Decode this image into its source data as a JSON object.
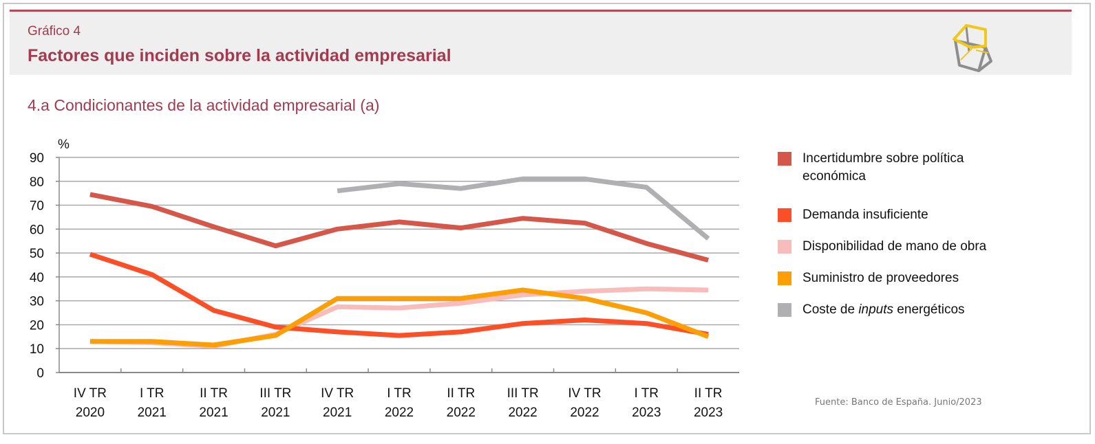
{
  "header": {
    "kicker": "Gráfico 4",
    "title": "Factores que inciden sobre la actividad empresarial",
    "logo_icon": "cube-logo-icon"
  },
  "subtitle": "4.a  Condicionantes de la actividad empresarial (a)",
  "source": "Fuente: Banco de España. Junio/2023",
  "chart_data": {
    "type": "line",
    "title": "4.a  Condicionantes de la actividad empresarial (a)",
    "ylabel": "%",
    "xlabel": "",
    "ylim": [
      0,
      90
    ],
    "yticks": [
      "0",
      "10",
      "20",
      "30",
      "40",
      "50",
      "60",
      "70",
      "80",
      "90"
    ],
    "grid": true,
    "legend_position": "right",
    "categories": [
      [
        "IV TR",
        "2020"
      ],
      [
        "I TR",
        "2021"
      ],
      [
        "II TR",
        "2021"
      ],
      [
        "III TR",
        "2021"
      ],
      [
        "IV TR",
        "2021"
      ],
      [
        "I TR",
        "2022"
      ],
      [
        "II TR",
        "2022"
      ],
      [
        "III TR",
        "2022"
      ],
      [
        "IV TR",
        "2022"
      ],
      [
        "I TR",
        "2023"
      ],
      [
        "II TR",
        "2023"
      ]
    ],
    "series": [
      {
        "name": "Incertidumbre sobre política económica",
        "color": "#d4574a",
        "values": [
          74.5,
          69.5,
          61,
          53,
          60,
          63,
          60.5,
          64.5,
          62.5,
          54,
          47
        ]
      },
      {
        "name": "Demanda insuficiente",
        "color": "#fb5027",
        "values": [
          49.5,
          41,
          26,
          19,
          17,
          15.5,
          17,
          20.5,
          22,
          20.5,
          16
        ]
      },
      {
        "name": "Disponibilidad de mano de obra",
        "color": "#f8bcbb",
        "values": [
          13,
          12.5,
          11,
          16,
          27.5,
          27,
          29,
          32.5,
          34,
          35,
          34.5
        ]
      },
      {
        "name": "Suministro de proveedores",
        "color": "#fc9f06",
        "values": [
          13,
          13,
          11.5,
          15.5,
          31,
          31,
          31,
          34.5,
          31,
          25,
          15
        ]
      },
      {
        "name": "Coste de inputs energéticos",
        "name_parts": [
          "Coste de ",
          "inputs",
          " energéticos"
        ],
        "color": "#b0b0b3",
        "values": [
          null,
          null,
          null,
          null,
          76,
          79,
          77,
          81,
          81,
          77.5,
          56
        ]
      }
    ]
  }
}
